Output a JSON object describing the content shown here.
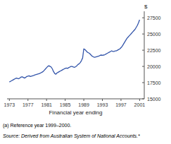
{
  "chart_data": {
    "type": "line",
    "xlabel": "Financial year ending",
    "ylabel": "$",
    "annotations": [
      "(a) Reference year 1999–2000.",
      "Source: Derived from Australian System of National Accounts.*"
    ],
    "xlim": [
      1972.5,
      2002
    ],
    "ylim": [
      15000,
      28500
    ],
    "xticks": [
      1973,
      1977,
      1981,
      1985,
      1989,
      1993,
      1997,
      2001
    ],
    "yticks": [
      15000,
      17500,
      20000,
      22500,
      25000,
      27500
    ],
    "grid": false,
    "color": "#3355aa",
    "x": [
      1973,
      1973.25,
      1973.5,
      1973.75,
      1974,
      1974.25,
      1974.5,
      1974.75,
      1975,
      1975.25,
      1975.5,
      1975.75,
      1976,
      1976.25,
      1976.5,
      1976.75,
      1977,
      1977.25,
      1977.5,
      1977.75,
      1978,
      1978.25,
      1978.5,
      1978.75,
      1979,
      1979.25,
      1979.5,
      1979.75,
      1980,
      1980.25,
      1980.5,
      1980.75,
      1981,
      1981.25,
      1981.5,
      1981.75,
      1982,
      1982.25,
      1982.5,
      1982.75,
      1983,
      1983.25,
      1983.5,
      1983.75,
      1984,
      1984.25,
      1984.5,
      1984.75,
      1985,
      1985.25,
      1985.5,
      1985.75,
      1986,
      1986.25,
      1986.5,
      1986.75,
      1987,
      1987.25,
      1987.5,
      1987.75,
      1988,
      1988.25,
      1988.5,
      1988.75,
      1989,
      1989.25,
      1989.5,
      1989.75,
      1990,
      1990.25,
      1990.5,
      1990.75,
      1991,
      1991.25,
      1991.5,
      1991.75,
      1992,
      1992.25,
      1992.5,
      1992.75,
      1993,
      1993.25,
      1993.5,
      1993.75,
      1994,
      1994.25,
      1994.5,
      1994.75,
      1995,
      1995.25,
      1995.5,
      1995.75,
      1996,
      1996.25,
      1996.5,
      1996.75,
      1997,
      1997.25,
      1997.5,
      1997.75,
      1998,
      1998.25,
      1998.5,
      1998.75,
      1999,
      1999.25,
      1999.5,
      1999.75,
      2000,
      2000.25,
      2000.5,
      2000.75,
      2001
    ],
    "values": [
      17600,
      17700,
      17800,
      17900,
      18000,
      18100,
      18200,
      18150,
      18100,
      18200,
      18350,
      18400,
      18300,
      18200,
      18300,
      18450,
      18500,
      18550,
      18450,
      18500,
      18550,
      18600,
      18700,
      18750,
      18800,
      18850,
      18900,
      19000,
      19100,
      19200,
      19400,
      19600,
      19800,
      20000,
      20100,
      20000,
      19900,
      19600,
      19200,
      18900,
      18800,
      19000,
      19100,
      19200,
      19300,
      19400,
      19500,
      19600,
      19700,
      19750,
      19700,
      19800,
      19900,
      20000,
      20000,
      19900,
      19850,
      19950,
      20100,
      20300,
      20400,
      20600,
      20900,
      21300,
      22700,
      22600,
      22400,
      22200,
      22100,
      22000,
      21800,
      21600,
      21500,
      21400,
      21450,
      21500,
      21550,
      21600,
      21700,
      21750,
      21700,
      21750,
      21800,
      21900,
      22000,
      22100,
      22200,
      22300,
      22400,
      22300,
      22300,
      22400,
      22400,
      22500,
      22600,
      22700,
      22900,
      23100,
      23400,
      23700,
      24000,
      24300,
      24500,
      24700,
      24900,
      25100,
      25300,
      25500,
      25700,
      26000,
      26300,
      26700,
      27200
    ]
  }
}
